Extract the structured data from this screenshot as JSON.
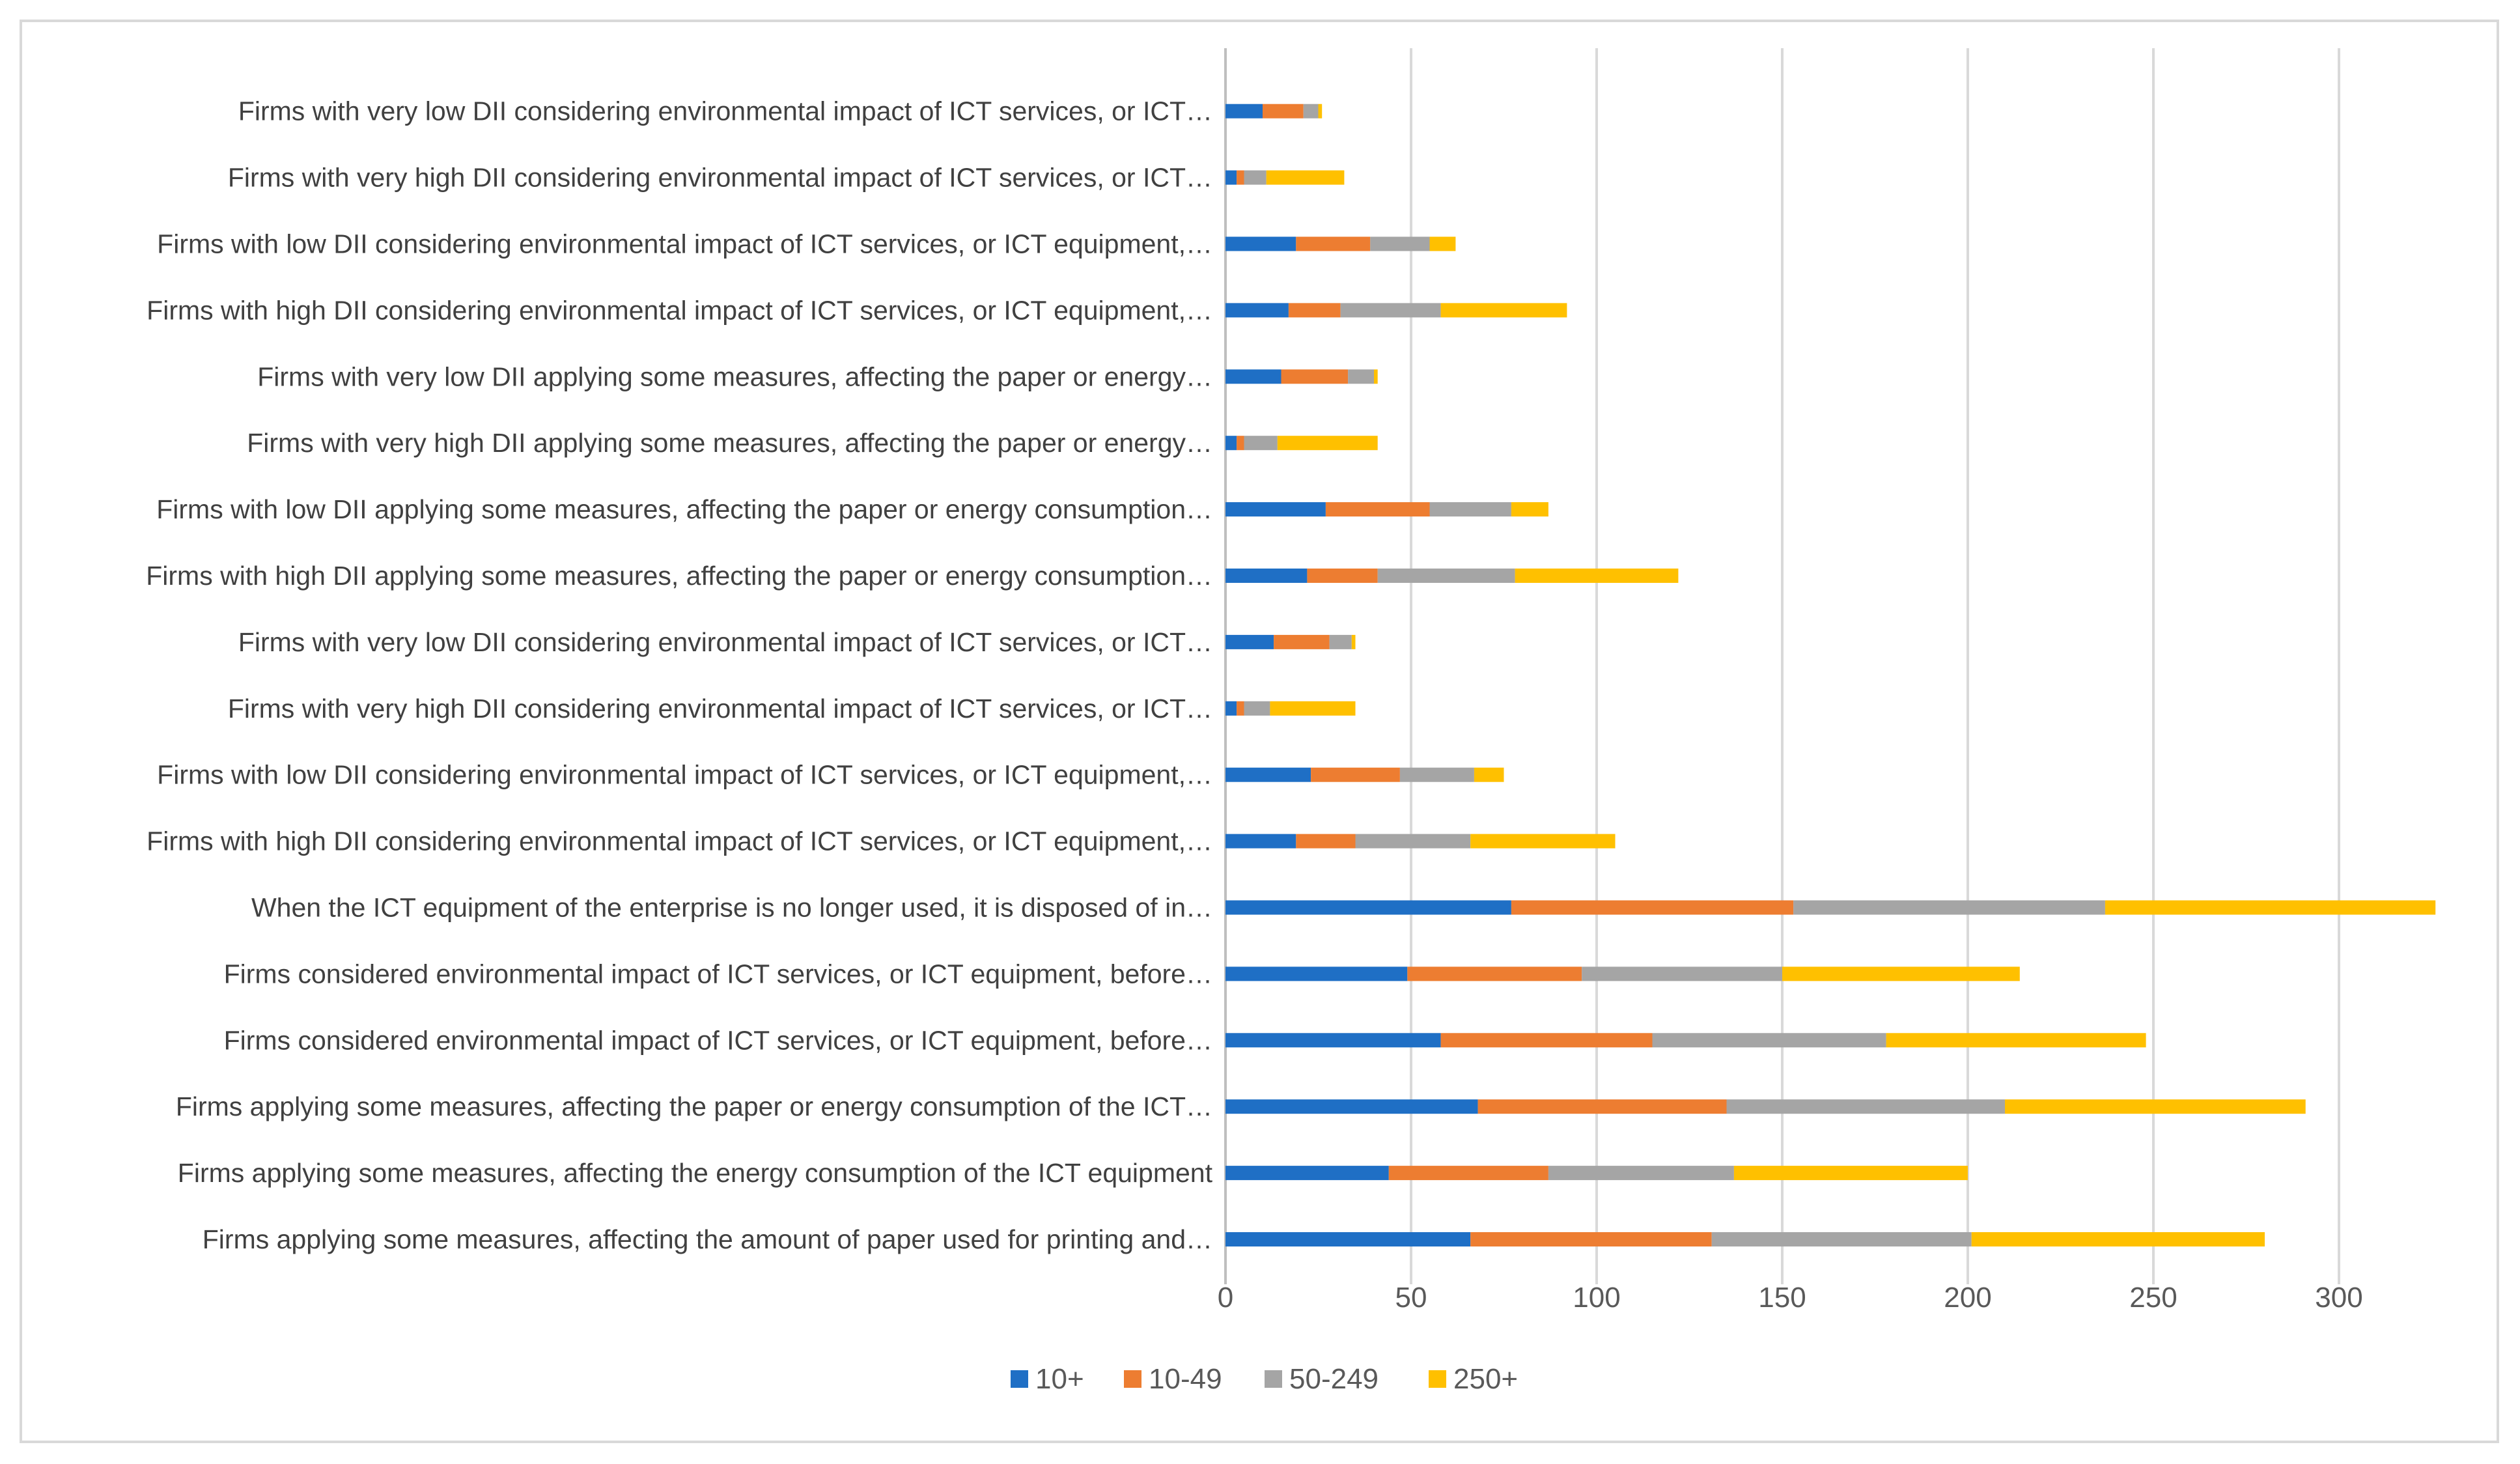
{
  "chart_data": {
    "type": "bar",
    "orientation": "horizontal",
    "stacked": true,
    "title": "",
    "xlabel": "",
    "ylabel": "",
    "xlim": [
      0,
      330
    ],
    "xticks": [
      0,
      50,
      100,
      150,
      200,
      250,
      300
    ],
    "grid": "vertical",
    "legend_position": "bottom",
    "categories": [
      "Firms applying some measures, affecting the amount of paper used for printing and…",
      "Firms applying some measures, affecting the energy consumption of the ICT equipment",
      "Firms applying some measures, affecting the paper or energy consumption of the ICT…",
      "Firms considered environmental impact of ICT services, or ICT equipment, before…",
      "Firms considered environmental impact of ICT services, or ICT equipment, before…",
      "When the ICT equipment of the enterprise is no longer used, it is disposed of in…",
      "Firms with high DII considering environmental impact of ICT services, or ICT equipment,…",
      "Firms with low DII considering environmental impact of ICT services, or ICT equipment,…",
      "Firms with very high DII considering environmental impact of ICT services, or ICT…",
      "Firms with very low DII considering environmental impact of ICT services, or ICT…",
      "Firms with high DII applying some measures, affecting the paper or energy consumption…",
      "Firms with low DII applying some measures, affecting the paper or energy consumption…",
      "Firms with very high DII applying some measures, affecting the paper or energy…",
      "Firms with very low DII applying some measures, affecting the paper or energy…",
      "Firms with high DII considering environmental impact of ICT services, or ICT equipment,…",
      "Firms with low DII considering environmental impact of ICT services, or ICT equipment,…",
      "Firms with very high DII considering environmental impact of ICT services, or ICT…",
      "Firms with very low DII considering environmental impact of ICT services, or ICT…"
    ],
    "series": [
      {
        "name": "10+",
        "color": "#1f6fc5",
        "values": [
          66,
          44,
          68,
          58,
          49,
          77,
          19,
          23,
          3,
          13,
          22,
          27,
          3,
          15,
          17,
          19,
          3,
          10
        ]
      },
      {
        "name": "10-49",
        "color": "#ed7d31",
        "values": [
          65,
          43,
          67,
          57,
          47,
          76,
          16,
          24,
          2,
          15,
          19,
          28,
          2,
          18,
          14,
          20,
          2,
          11
        ]
      },
      {
        "name": "50-249",
        "color": "#a5a5a5",
        "values": [
          70,
          50,
          75,
          63,
          54,
          84,
          31,
          20,
          7,
          6,
          37,
          22,
          9,
          7,
          27,
          16,
          6,
          4
        ]
      },
      {
        "name": "250+",
        "color": "#ffc000",
        "values": [
          79,
          63,
          81,
          70,
          64,
          89,
          39,
          8,
          23,
          1,
          44,
          10,
          27,
          1,
          34,
          7,
          21,
          1
        ]
      }
    ]
  }
}
